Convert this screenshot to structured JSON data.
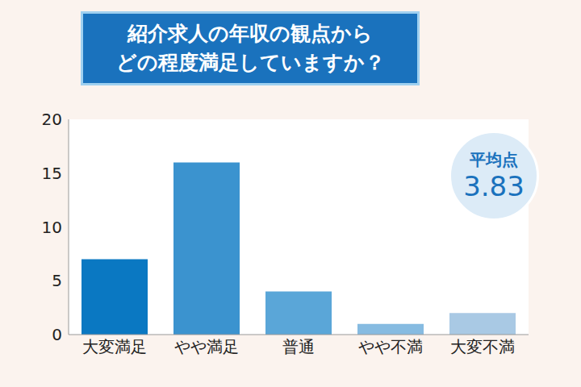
{
  "chart_data": {
    "type": "bar",
    "title": [
      "紹介求人の年収の観点から",
      "どの程度満足していますか？"
    ],
    "categories": [
      "大変満足",
      "やや満足",
      "普通",
      "やや不満",
      "大変不満"
    ],
    "values": [
      7,
      16,
      4,
      1,
      2
    ],
    "colors": [
      "#0a78c2",
      "#3b93cf",
      "#5aa6d8",
      "#86bbe1",
      "#a9c9e4"
    ],
    "ylim": [
      0,
      20
    ],
    "yticks": [
      0,
      5,
      10,
      15,
      20
    ],
    "grid": false,
    "data_labels": false,
    "annotations": [
      {
        "label": "平均点",
        "value": 3.83
      }
    ]
  }
}
